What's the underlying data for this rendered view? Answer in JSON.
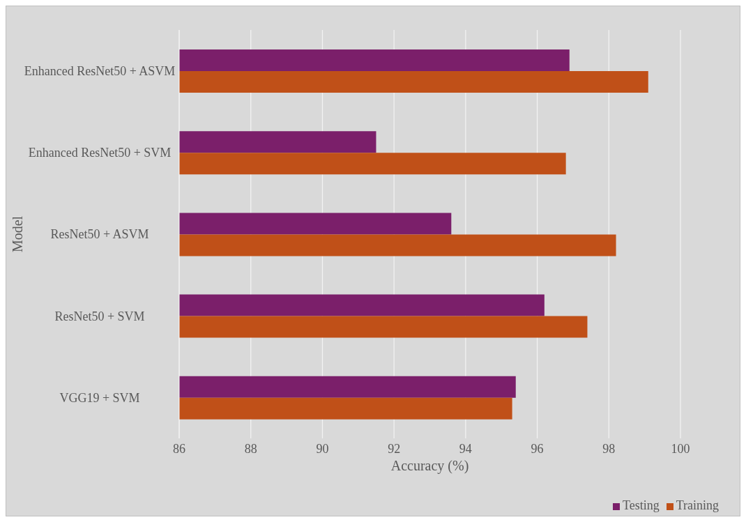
{
  "chart_data": {
    "type": "bar",
    "orientation": "horizontal",
    "xlabel": "Accuracy (%)",
    "ylabel": "Model",
    "categories": [
      "Enhanced ResNet50 + ASVM",
      "Enhanced ResNet50 + SVM",
      "ResNet50 + ASVM",
      "ResNet50 + SVM",
      "VGG19 + SVM"
    ],
    "series": [
      {
        "name": "Testing",
        "color": "#7b1f6a",
        "values": [
          96.9,
          91.5,
          93.6,
          96.2,
          95.4
        ]
      },
      {
        "name": "Training",
        "color": "#c05018",
        "values": [
          99.1,
          96.8,
          98.2,
          97.4,
          95.3
        ]
      }
    ],
    "xlim": [
      86,
      100
    ],
    "xticks": [
      86,
      88,
      90,
      92,
      94,
      96,
      98,
      100
    ],
    "grid": true,
    "legend": "bottom right"
  }
}
